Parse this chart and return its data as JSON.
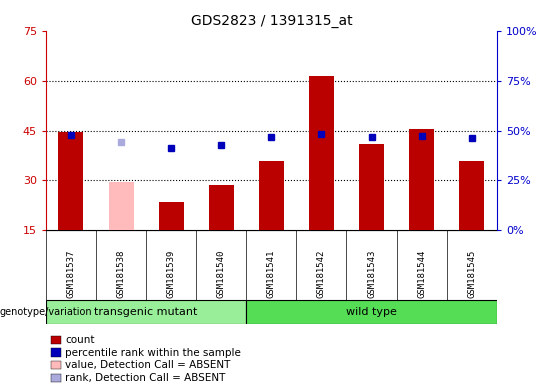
{
  "title": "GDS2823 / 1391315_at",
  "samples": [
    "GSM181537",
    "GSM181538",
    "GSM181539",
    "GSM181540",
    "GSM181541",
    "GSM181542",
    "GSM181543",
    "GSM181544",
    "GSM181545"
  ],
  "count_values": [
    44.5,
    null,
    23.5,
    28.5,
    36.0,
    61.5,
    41.0,
    45.5,
    36.0
  ],
  "count_absent": [
    null,
    29.5,
    null,
    null,
    null,
    null,
    null,
    null,
    null
  ],
  "rank_values": [
    48.0,
    null,
    41.5,
    43.0,
    47.0,
    48.5,
    47.0,
    47.5,
    46.5
  ],
  "rank_absent": [
    null,
    44.5,
    null,
    null,
    null,
    null,
    null,
    null,
    null
  ],
  "transgenic_mutant_indices": [
    0,
    1,
    2,
    3
  ],
  "wild_type_indices": [
    4,
    5,
    6,
    7,
    8
  ],
  "ylim_left": [
    15,
    75
  ],
  "ylim_right": [
    0,
    100
  ],
  "yticks_left": [
    15,
    30,
    45,
    60,
    75
  ],
  "yticks_right": [
    0,
    25,
    50,
    75,
    100
  ],
  "ytick_labels_right": [
    "0%",
    "25%",
    "50%",
    "75%",
    "100%"
  ],
  "ytick_labels_left": [
    "15",
    "30",
    "45",
    "60",
    "75"
  ],
  "hlines": [
    30,
    45,
    60
  ],
  "bar_width": 0.5,
  "bar_color_present": "#bb0000",
  "bar_color_absent": "#ffbbbb",
  "rank_color_present": "#0000bb",
  "rank_color_absent": "#aaaadd",
  "transgenic_color": "#99ee99",
  "wildtype_color": "#55dd55",
  "label_bg_color": "#cccccc",
  "legend_items": [
    {
      "label": "count",
      "color": "#bb0000"
    },
    {
      "label": "percentile rank within the sample",
      "color": "#0000bb"
    },
    {
      "label": "value, Detection Call = ABSENT",
      "color": "#ffbbbb"
    },
    {
      "label": "rank, Detection Call = ABSENT",
      "color": "#aaaadd"
    }
  ]
}
